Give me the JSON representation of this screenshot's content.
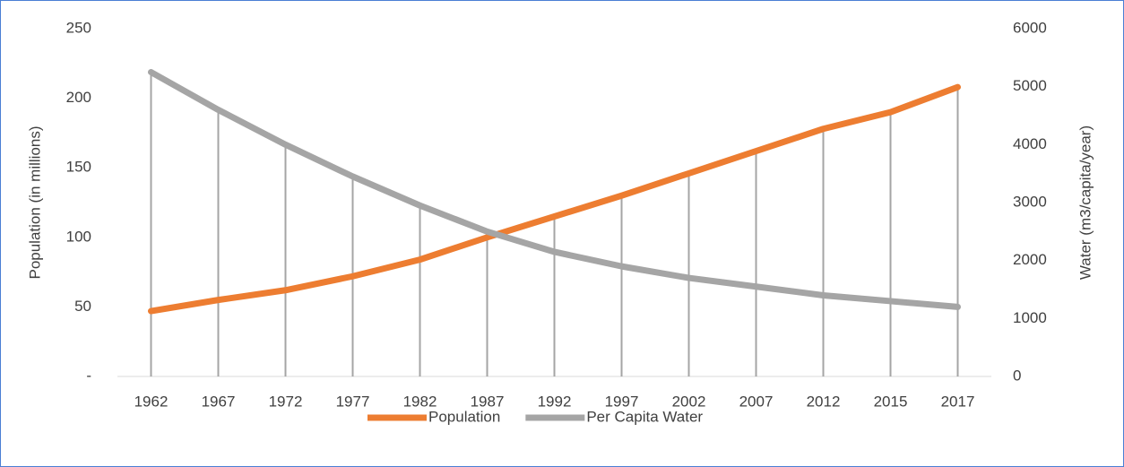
{
  "chart_data": {
    "type": "line",
    "categories": [
      "1962",
      "1967",
      "1972",
      "1977",
      "1982",
      "1987",
      "1992",
      "1997",
      "2002",
      "2007",
      "2012",
      "2015",
      "2017"
    ],
    "series": [
      {
        "name": "Population",
        "color": "#ED7D31",
        "values": [
          47,
          55,
          62,
          72,
          84,
          100,
          115,
          130,
          146,
          162,
          178,
          190,
          208
        ]
      },
      {
        "name": "Per Capita Water",
        "color": "#A5A5A5",
        "axis": "y2",
        "values": [
          5250,
          4600,
          4000,
          3450,
          2950,
          2500,
          2150,
          1900,
          1700,
          1550,
          1400,
          1300,
          1200
        ]
      }
    ],
    "y_label": "Population (in millions)",
    "y2_label": "Water (m3/capita/year)",
    "ylim": [
      0,
      250
    ],
    "yticks": [
      {
        "value": 0,
        "label": "-"
      },
      50,
      100,
      150,
      200,
      250
    ],
    "y2lim": [
      0,
      6000
    ],
    "y2ticks": [
      0,
      1000,
      2000,
      3000,
      4000,
      5000,
      6000
    ],
    "drop_lines": true,
    "legend": "bottom"
  }
}
